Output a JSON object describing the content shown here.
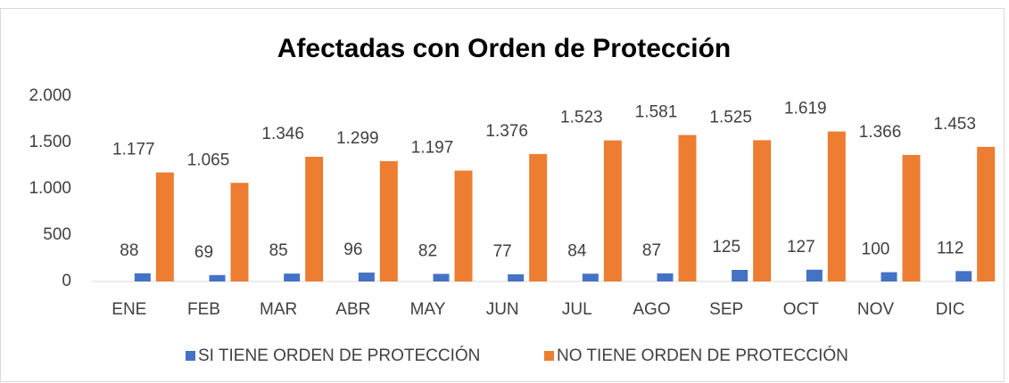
{
  "chart_data": {
    "type": "bar",
    "title": "Afectadas con Orden de Protección",
    "categories": [
      "ENE",
      "FEB",
      "MAR",
      "ABR",
      "MAY",
      "JUN",
      "JUL",
      "AGO",
      "SEP",
      "OCT",
      "NOV",
      "DIC"
    ],
    "series": [
      {
        "name": "SI TIENE ORDEN DE PROTECCIÓN",
        "color": "#4472c4",
        "values": [
          88,
          69,
          85,
          96,
          82,
          77,
          84,
          87,
          125,
          127,
          100,
          112
        ]
      },
      {
        "name": "NO TIENE ORDEN DE PROTECCIÓN",
        "color": "#ed7d31",
        "values": [
          1177,
          1065,
          1346,
          1299,
          1197,
          1376,
          1523,
          1581,
          1525,
          1619,
          1366,
          1453
        ],
        "value_labels": [
          "1.177",
          "1.065",
          "1.346",
          "1.299",
          "1.197",
          "1.376",
          "1.523",
          "1.581",
          "1.525",
          "1.619",
          "1.366",
          "1.453"
        ]
      }
    ],
    "ylim": [
      0,
      2000
    ],
    "yticks": [
      0,
      500,
      {
        "value": 1000,
        "label": "1.000"
      },
      {
        "value": 1500,
        "label": "1.500"
      },
      {
        "value": 2000,
        "label": "2.000"
      }
    ],
    "grid": false,
    "legend": "bottom"
  }
}
